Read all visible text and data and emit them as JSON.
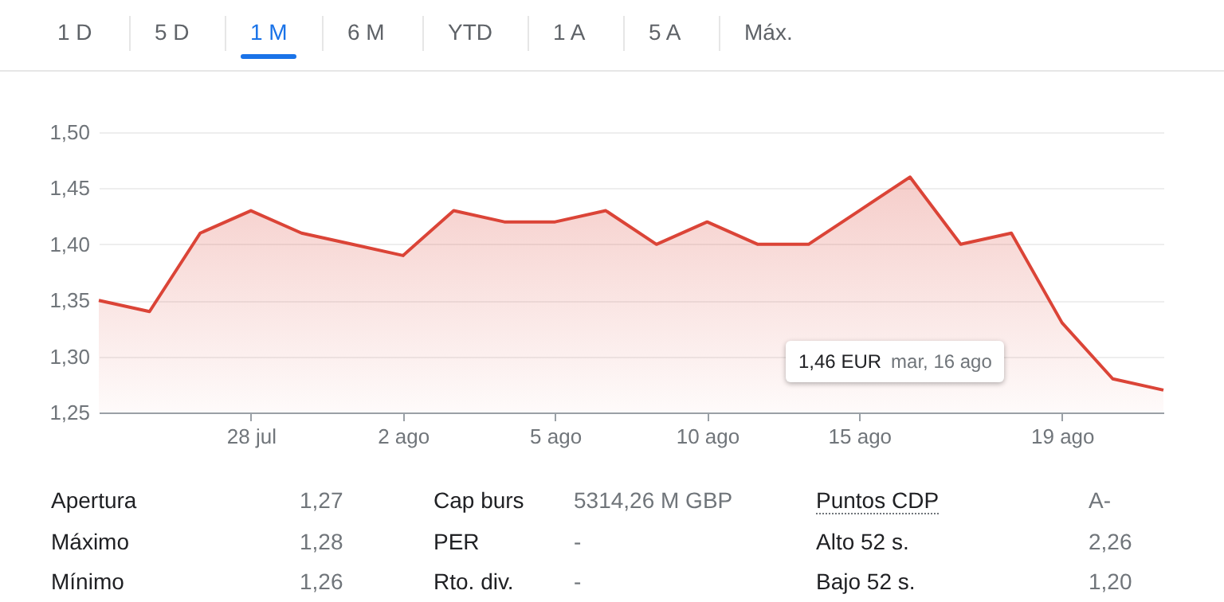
{
  "chart_data": {
    "type": "area",
    "categories": [
      null,
      null,
      null,
      "28 jul",
      null,
      null,
      "2 ago",
      null,
      null,
      "5 ago",
      null,
      null,
      "10 ago",
      null,
      null,
      "15 ago",
      null,
      null,
      null,
      "19 ago",
      null,
      null
    ],
    "series": [
      {
        "color": "#db4437",
        "values": [
          1.35,
          1.34,
          1.41,
          1.43,
          1.41,
          1.4,
          1.39,
          1.43,
          1.42,
          1.42,
          1.43,
          1.4,
          1.42,
          1.4,
          1.4,
          1.43,
          1.46,
          1.4,
          1.41,
          1.33,
          1.28,
          1.27
        ]
      }
    ],
    "ylim": [
      1.25,
      1.5
    ],
    "yticks": [
      {
        "value": 1.25,
        "label": "1,25"
      },
      {
        "value": 1.3,
        "label": "1,30"
      },
      {
        "value": 1.35,
        "label": "1,35"
      },
      {
        "value": 1.4,
        "label": "1,40"
      },
      {
        "value": 1.45,
        "label": "1,45"
      },
      {
        "value": 1.5,
        "label": "1,50"
      }
    ],
    "grid": "y",
    "annotations": [
      "1 D",
      "5 D",
      "1 M",
      "6 M",
      "YTD",
      "1 A",
      "5 A",
      "Máx.",
      "1,46 EUR",
      "mar, 16 ago",
      "Apertura",
      "1,27",
      "Cap burs",
      "5314,26 M GBP",
      "Puntos CDP",
      "A-",
      "Máximo",
      "1,28",
      "PER",
      "-",
      "Alto 52 s.",
      "2,26",
      "Mínimo",
      "1,26",
      "Rto. div.",
      "-",
      "Bajo 52 s.",
      "1,20"
    ]
  }
}
